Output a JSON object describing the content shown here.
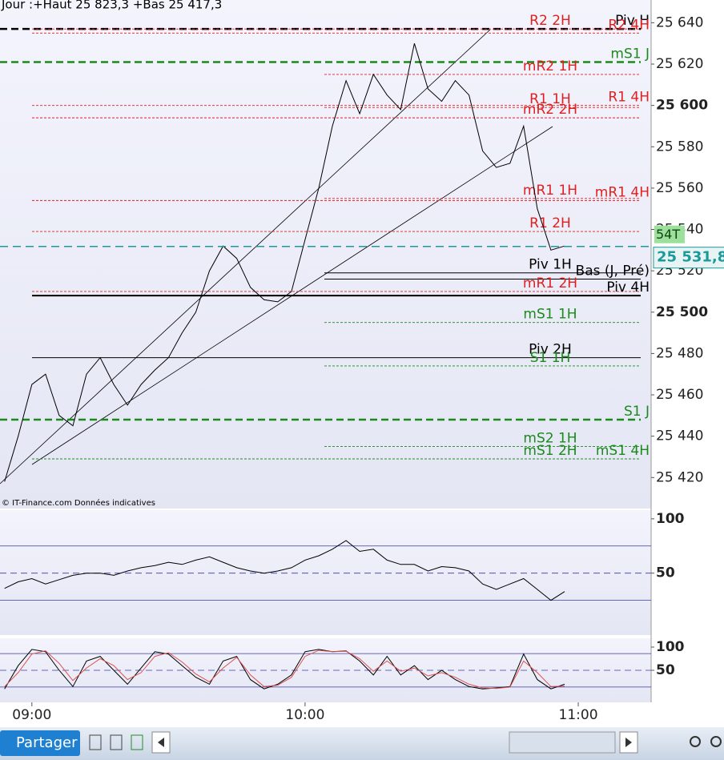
{
  "chart_data": [
    {
      "type": "line",
      "title": "Jour :+Haut 25 823,3 +Bas 25 417,3",
      "annotation": "© IT-Finance.com  Données indicatives",
      "x": [
        534,
        537,
        540,
        543,
        546,
        549,
        552,
        555,
        558,
        561,
        564,
        567,
        570,
        573,
        576,
        579,
        582,
        585,
        588,
        591,
        594,
        597,
        600,
        603,
        606,
        609,
        612,
        615,
        618,
        621,
        624,
        627,
        630,
        633,
        636,
        639,
        642,
        645,
        648,
        651,
        654,
        657
      ],
      "xlim": [
        533,
        676
      ],
      "series": [
        {
          "color": "#000000",
          "values": [
            25418,
            25440,
            25465,
            25470,
            25450,
            25445,
            25470,
            25478,
            25465,
            25455,
            25465,
            25472,
            25478,
            25490,
            25500,
            25520,
            25532,
            25526,
            25512,
            25506,
            25505,
            25510,
            25535,
            25560,
            25590,
            25612,
            25596,
            25615,
            25605,
            25598,
            25630,
            25608,
            25602,
            25612,
            25605,
            25578,
            25570,
            25572,
            25590,
            25550,
            25530,
            25532
          ]
        }
      ],
      "ylim": [
        25405,
        25651
      ],
      "yticks": [
        {
          "value": 25640,
          "label": "25 640"
        },
        {
          "value": 25620,
          "label": "25 620"
        },
        {
          "value": 25600,
          "label": "25 600"
        },
        {
          "value": 25580,
          "label": "25 580"
        },
        {
          "value": 25560,
          "label": "25 560"
        },
        {
          "value": 25540,
          "label": "25 540"
        },
        {
          "value": 25520,
          "label": "25 520"
        },
        {
          "value": 25500,
          "label": "25 500"
        },
        {
          "value": 25480,
          "label": "25 480"
        },
        {
          "value": 25460,
          "label": "25 460"
        },
        {
          "value": 25440,
          "label": "25 440"
        },
        {
          "value": 25420,
          "label": "25 420"
        }
      ],
      "levels": [
        {
          "label": "Piv H",
          "value": 25637,
          "color": "#000000",
          "style": "dashed-thick"
        },
        {
          "label": "R2 2H",
          "value": 25637,
          "color": "#e02020",
          "style": "dotted"
        },
        {
          "label": "R2 4H",
          "value": 25635,
          "color": "#e02020",
          "style": "dotted"
        },
        {
          "label": "mS1 J",
          "value": 25621,
          "color": "#1a8a1a",
          "style": "dashed-thick"
        },
        {
          "label": "mR2 1H",
          "value": 25615,
          "color": "#e02020",
          "style": "dotted"
        },
        {
          "label": "R1 4H",
          "value": 25600,
          "color": "#e02020",
          "style": "dotted"
        },
        {
          "label": "R1 1H",
          "value": 25599,
          "color": "#e02020",
          "style": "dotted"
        },
        {
          "label": "mR2 2H",
          "value": 25594,
          "color": "#e02020",
          "style": "dotted"
        },
        {
          "label": "mR1 1H",
          "value": 25555,
          "color": "#e02020",
          "style": "dotted"
        },
        {
          "label": "mR1 4H",
          "value": 25554,
          "color": "#e02020",
          "style": "dotted"
        },
        {
          "label": "R1 2H",
          "value": 25539,
          "color": "#e02020",
          "style": "dotted"
        },
        {
          "label": "Piv 1H",
          "value": 25519,
          "color": "#000000",
          "style": "solid"
        },
        {
          "label": "Bas (J, Pré)",
          "value": 25516,
          "color": "#000000",
          "style": "solid"
        },
        {
          "label": "mR1 2H",
          "value": 25510,
          "color": "#e02020",
          "style": "dotted"
        },
        {
          "label": "Piv 4H",
          "value": 25508,
          "color": "#000000",
          "style": "solid-thick"
        },
        {
          "label": "mS1 1H",
          "value": 25495,
          "color": "#1a8a1a",
          "style": "dotted"
        },
        {
          "label": "Piv 2H",
          "value": 25478,
          "color": "#000000",
          "style": "solid"
        },
        {
          "label": "S1 1H",
          "value": 25474,
          "color": "#1a8a1a",
          "style": "dotted"
        },
        {
          "label": "S1 J",
          "value": 25448,
          "color": "#1a8a1a",
          "style": "dashed-thick"
        },
        {
          "label": "mS2 1H",
          "value": 25435,
          "color": "#1a8a1a",
          "style": "dotted"
        },
        {
          "label": "mS1 2H",
          "value": 25429,
          "color": "#1a8a1a",
          "style": "dotted"
        },
        {
          "label": "mS1 4H",
          "value": 25429,
          "color": "#1a8a1a",
          "style": "dotted"
        }
      ],
      "last_price": {
        "value": 25531.8,
        "label": "25 531,8",
        "color": "#1a9a9a",
        "tag": "54T"
      }
    },
    {
      "type": "line",
      "x": [
        534,
        537,
        540,
        543,
        546,
        549,
        552,
        555,
        558,
        561,
        564,
        567,
        570,
        573,
        576,
        579,
        582,
        585,
        588,
        591,
        594,
        597,
        600,
        603,
        606,
        609,
        612,
        615,
        618,
        621,
        624,
        627,
        630,
        633,
        636,
        639,
        642,
        645,
        648,
        651,
        654,
        657
      ],
      "xlim": [
        533,
        676
      ],
      "series": [
        {
          "color": "#000000",
          "values": [
            36,
            42,
            45,
            40,
            44,
            48,
            50,
            50,
            48,
            52,
            55,
            57,
            60,
            58,
            62,
            65,
            60,
            55,
            52,
            50,
            52,
            55,
            62,
            66,
            72,
            80,
            70,
            72,
            62,
            58,
            58,
            52,
            56,
            55,
            52,
            40,
            35,
            40,
            45,
            35,
            25,
            33
          ]
        }
      ],
      "ylim": [
        -7,
        108
      ],
      "yticks": [
        100,
        50
      ],
      "reference_lines": [
        75,
        50,
        25
      ]
    },
    {
      "type": "line",
      "x": [
        534,
        537,
        540,
        543,
        546,
        549,
        552,
        555,
        558,
        561,
        564,
        567,
        570,
        573,
        576,
        579,
        582,
        585,
        588,
        591,
        594,
        597,
        600,
        603,
        606,
        609,
        612,
        615,
        618,
        621,
        624,
        627,
        630,
        633,
        636,
        639,
        642,
        645,
        648,
        651,
        654,
        657
      ],
      "xlim": [
        533,
        676
      ],
      "xticks": [
        {
          "value": 540,
          "label": "09:00"
        },
        {
          "value": 600,
          "label": "10:00"
        },
        {
          "value": 660,
          "label": "11:00"
        }
      ],
      "series": [
        {
          "color": "#000000",
          "values": [
            10,
            60,
            95,
            90,
            50,
            15,
            70,
            80,
            50,
            20,
            55,
            90,
            85,
            60,
            35,
            20,
            70,
            80,
            30,
            10,
            20,
            40,
            90,
            95,
            90,
            92,
            70,
            40,
            80,
            40,
            60,
            30,
            50,
            30,
            15,
            10,
            12,
            15,
            85,
            30,
            10,
            20
          ]
        },
        {
          "color": "#e05050",
          "values": [
            15,
            45,
            85,
            92,
            65,
            28,
            55,
            75,
            60,
            30,
            45,
            80,
            88,
            68,
            42,
            25,
            55,
            78,
            40,
            15,
            18,
            35,
            80,
            93,
            90,
            91,
            75,
            48,
            70,
            48,
            55,
            38,
            45,
            35,
            20,
            12,
            11,
            14,
            70,
            45,
            15,
            16
          ]
        }
      ],
      "ylim": [
        -19,
        119
      ],
      "yticks": [
        100,
        50
      ],
      "reference_lines": [
        86,
        50,
        14
      ]
    }
  ],
  "toolbar": {
    "share": "Partager"
  }
}
